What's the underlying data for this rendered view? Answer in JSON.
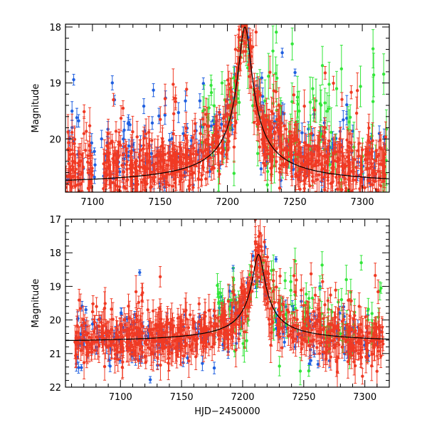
{
  "colors": {
    "series_a": "#f03a24",
    "series_b": "#1f5fe0",
    "series_c": "#33e63a",
    "model": "#000000",
    "frame": "#000000"
  },
  "chart_data": [
    {
      "type": "scatter",
      "title": "",
      "xlabel": "",
      "ylabel": "Magnitude",
      "xlim": [
        7080,
        7320
      ],
      "ylim": [
        20.95,
        17.95
      ],
      "y_inverted": true,
      "x_ticks": [
        "7100",
        "7150",
        "7200",
        "7250",
        "7300"
      ],
      "y_ticks": [
        "18",
        "19",
        "20"
      ],
      "error_bars": true,
      "series": [
        {
          "name": "red",
          "color": "#f03a24",
          "x_range": [
            7080,
            7318
          ],
          "baseline": 20.7,
          "scatter": 0.28,
          "error": 0.22,
          "n": 900
        },
        {
          "name": "blue",
          "color": "#1f5fe0",
          "x_range": [
            7080,
            7318
          ],
          "baseline": 20.5,
          "scatter": 0.32,
          "error": 0.12,
          "n": 230
        },
        {
          "name": "green",
          "color": "#33e63a",
          "x_range": [
            7180,
            7318
          ],
          "baseline": 20.1,
          "scatter": 0.5,
          "error": 0.3,
          "n": 120
        }
      ],
      "model": {
        "baseline": 20.85,
        "peak_x": 7213,
        "peak_y": 18.0,
        "width": 9
      }
    },
    {
      "type": "scatter",
      "title": "",
      "xlabel": "HJD−2450000",
      "ylabel": "Magnitude",
      "xlim": [
        7055,
        7320
      ],
      "ylim": [
        22,
        17
      ],
      "y_inverted": true,
      "x_ticks": [
        "7100",
        "7150",
        "7200",
        "7250",
        "7300"
      ],
      "y_ticks": [
        "17",
        "18",
        "19",
        "20",
        "21",
        "22"
      ],
      "error_bars": true,
      "series": [
        {
          "name": "red",
          "color": "#f03a24",
          "x_range": [
            7062,
            7315
          ],
          "baseline": 20.7,
          "scatter": 0.35,
          "error": 0.35,
          "n": 750
        },
        {
          "name": "blue",
          "color": "#1f5fe0",
          "x_range": [
            7062,
            7315
          ],
          "baseline": 20.7,
          "scatter": 0.45,
          "error": 0.15,
          "n": 250
        },
        {
          "name": "green",
          "color": "#33e63a",
          "x_range": [
            7175,
            7315
          ],
          "baseline": 20.2,
          "scatter": 0.6,
          "error": 0.3,
          "n": 110
        }
      ],
      "model": {
        "baseline": 20.7,
        "peak_x": 7213,
        "peak_y": 18.05,
        "width": 9
      }
    }
  ]
}
